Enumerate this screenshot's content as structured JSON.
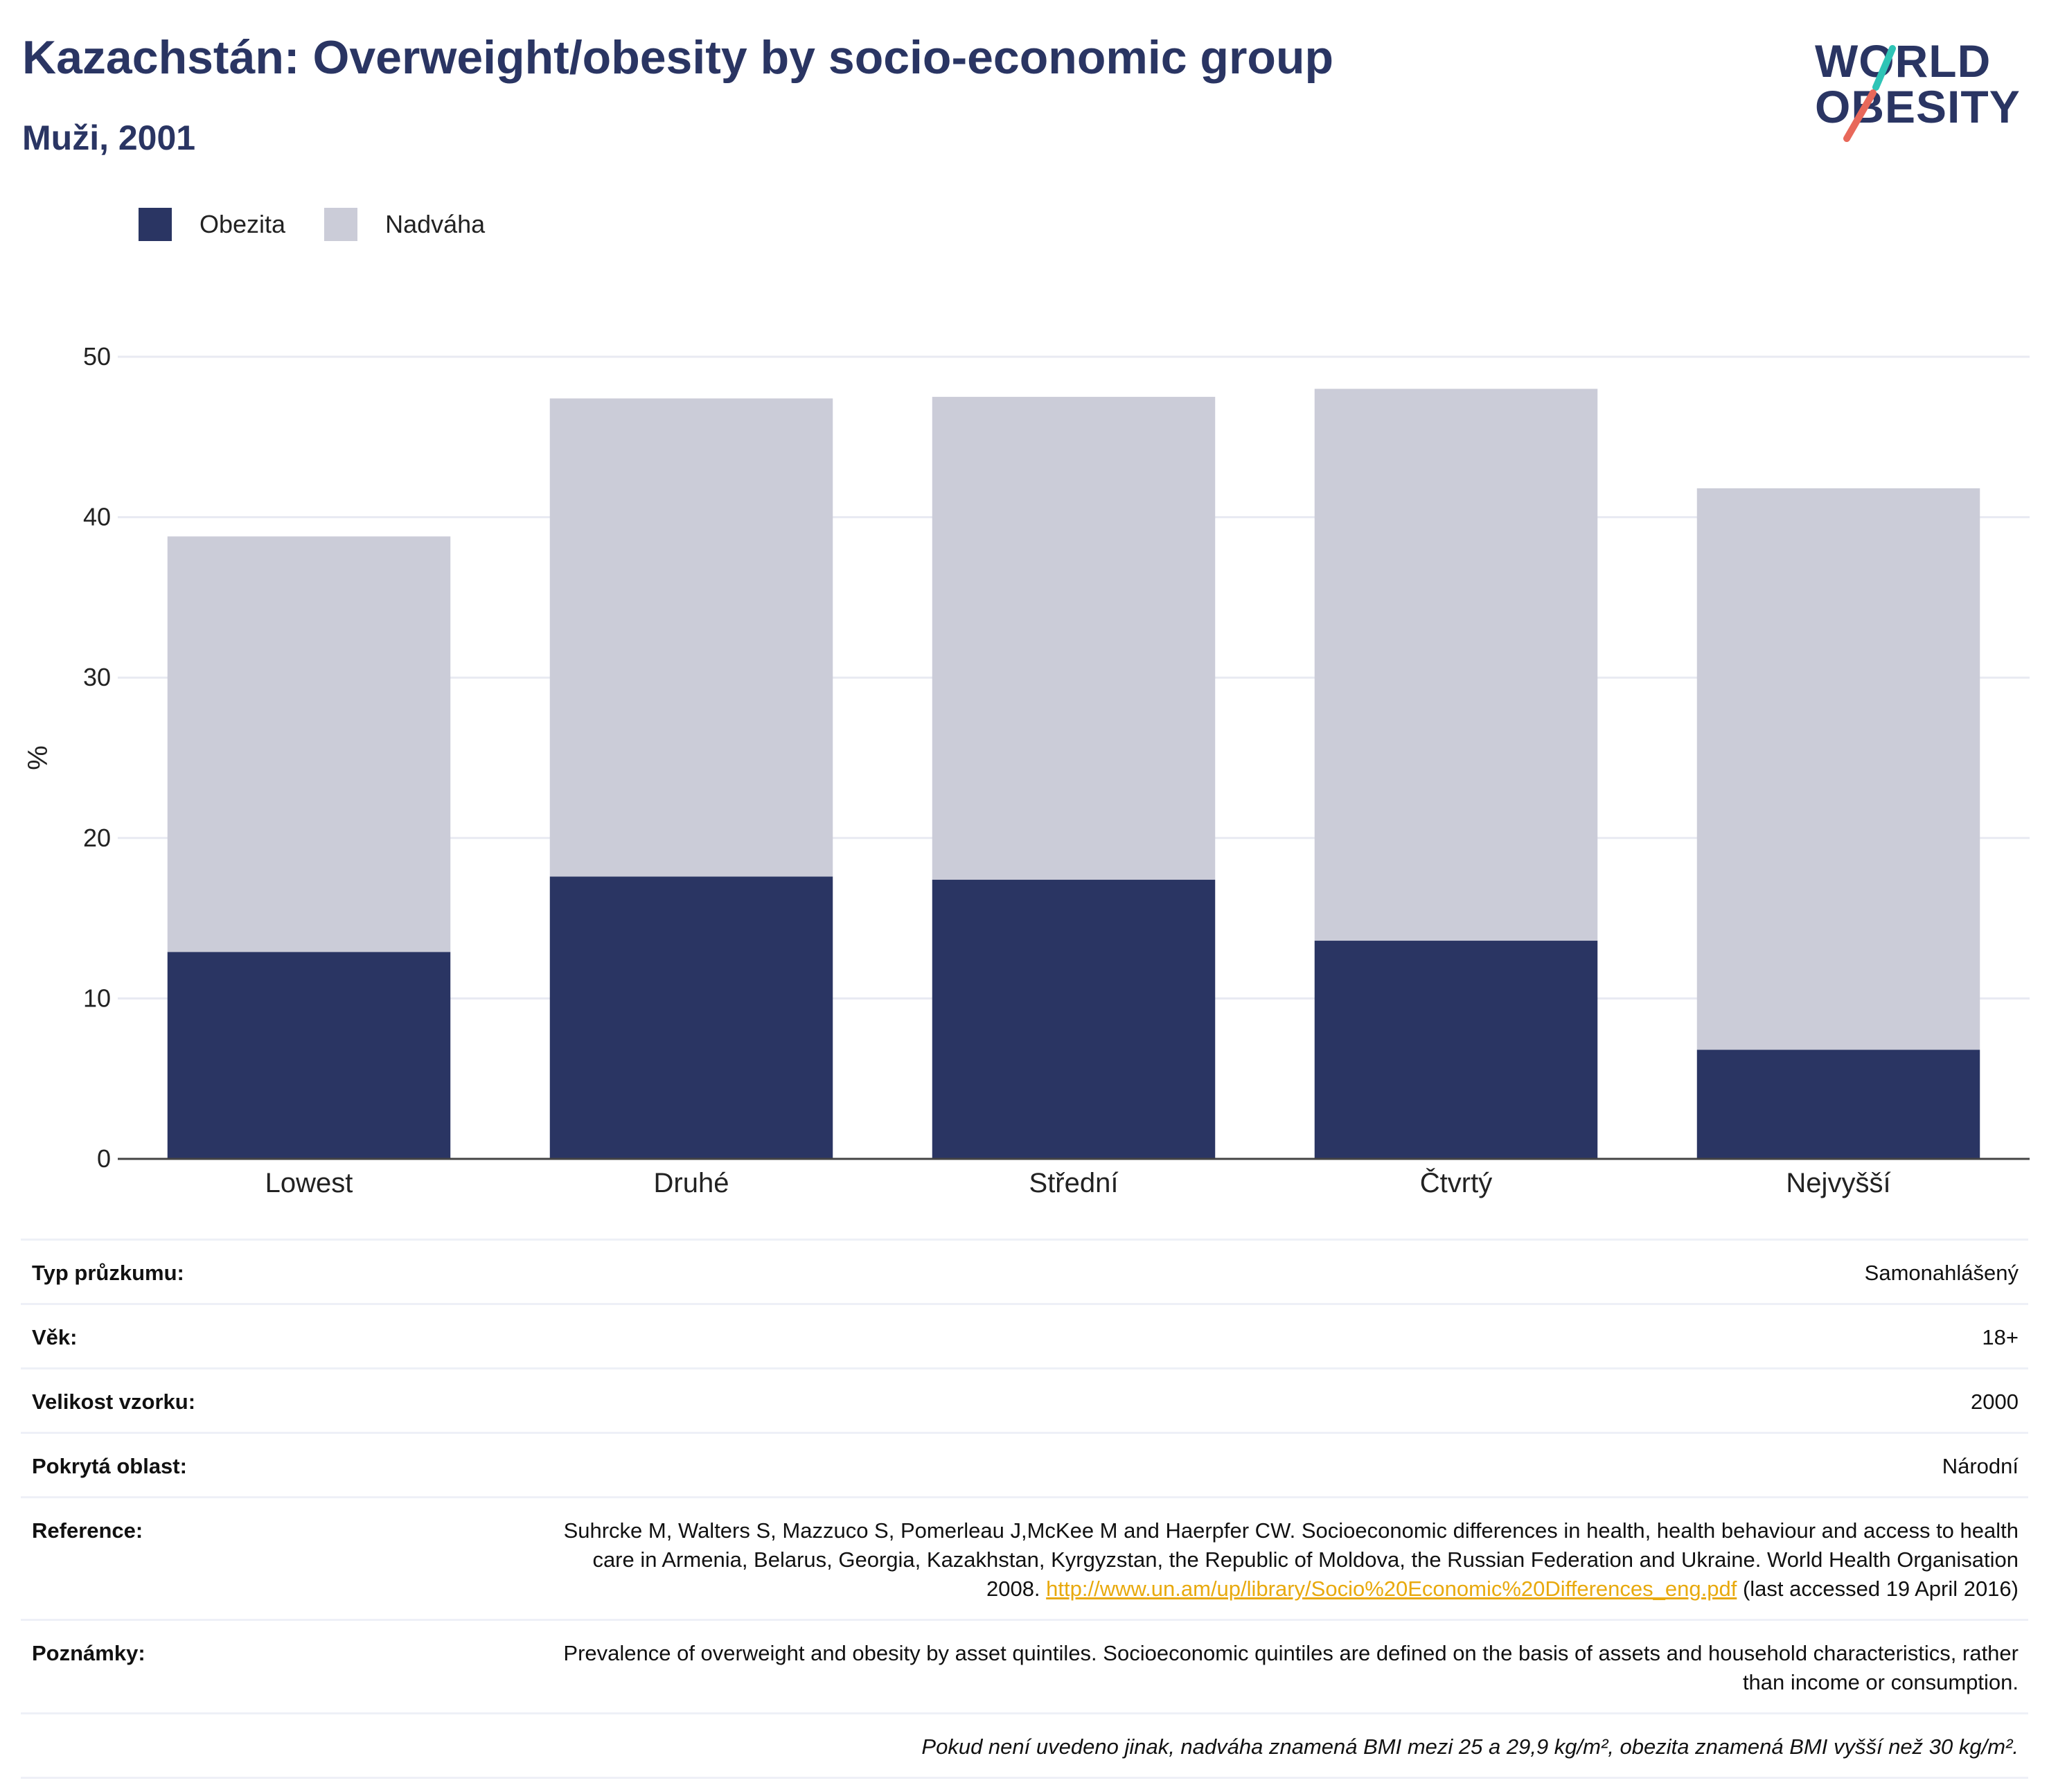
{
  "header": {
    "title": "Kazachstán: Overweight/obesity by socio-economic group",
    "subtitle": "Muži, 2001"
  },
  "logo": {
    "line1": "WORLD",
    "line2": "OBESITY",
    "colors": {
      "text": "#2a3563",
      "slash_top": "#2ec4b6",
      "slash_bottom": "#e8685a"
    }
  },
  "legend": [
    {
      "label": "Obezita",
      "color": "#2a3563"
    },
    {
      "label": "Nadváha",
      "color": "#cbccd8"
    }
  ],
  "chart_data": {
    "type": "bar",
    "stacked": true,
    "categories": [
      "Lowest",
      "Druhé",
      "Střední",
      "Čtvrtý",
      "Nejvyšší"
    ],
    "series": [
      {
        "name": "Obezita",
        "color": "#2a3563",
        "values": [
          12.9,
          17.6,
          17.4,
          13.6,
          6.8
        ]
      },
      {
        "name": "Nadváha",
        "color": "#cbccd8",
        "values": [
          25.9,
          29.8,
          30.1,
          34.4,
          35.0
        ]
      }
    ],
    "ylabel": "%",
    "ylim": [
      0,
      50
    ],
    "yticks": [
      0,
      10,
      20,
      30,
      40,
      50
    ],
    "grid": true,
    "legend_position": "top-left"
  },
  "info": {
    "survey_type": {
      "key": "Typ průzkumu:",
      "value": "Samonahlášený"
    },
    "age": {
      "key": "Věk:",
      "value": "18+"
    },
    "sample_size": {
      "key": "Velikost vzorku:",
      "value": "2000"
    },
    "area": {
      "key": "Pokrytá oblast:",
      "value": "Národní"
    },
    "reference": {
      "key": "Reference:",
      "text_before": "Suhrcke M, Walters S, Mazzuco S, Pomerleau J,McKee M and Haerpfer CW. Socioeconomic differences in health, health behaviour and access to health care in Armenia, Belarus, Georgia, Kazakhstan, Kyrgyzstan, the Republic of Moldova, the Russian Federation and Ukraine. World Health Organisation 2008.",
      "link": "http://www.un.am/up/library/Socio%20Economic%20Differences_eng.pdf",
      "text_after": "(last accessed 19 April 2016)"
    },
    "notes": {
      "key": "Poznámky:",
      "value": "Prevalence of overweight and obesity by asset quintiles. Socioeconomic quintiles are defined on the basis of assets and household characteristics, rather than income or consumption."
    },
    "footnote": "Pokud není uvedeno jinak, nadváha znamená BMI mezi 25 a 29,9 kg/m², obezita znamená BMI vyšší než 30 kg/m²."
  }
}
